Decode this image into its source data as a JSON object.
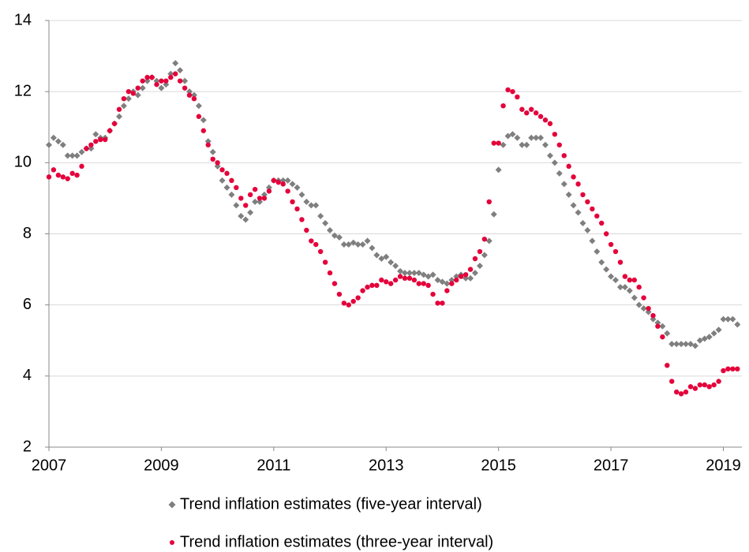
{
  "chart_data": {
    "type": "scatter",
    "x": [
      2007,
      2007.083,
      2007.167,
      2007.25,
      2007.333,
      2007.417,
      2007.5,
      2007.583,
      2007.667,
      2007.75,
      2007.833,
      2007.917,
      2008,
      2008.083,
      2008.167,
      2008.25,
      2008.333,
      2008.417,
      2008.5,
      2008.583,
      2008.667,
      2008.75,
      2008.833,
      2008.917,
      2009,
      2009.083,
      2009.167,
      2009.25,
      2009.333,
      2009.417,
      2009.5,
      2009.583,
      2009.667,
      2009.75,
      2009.833,
      2009.917,
      2010,
      2010.083,
      2010.167,
      2010.25,
      2010.333,
      2010.417,
      2010.5,
      2010.583,
      2010.667,
      2010.75,
      2010.833,
      2010.917,
      2011,
      2011.083,
      2011.167,
      2011.25,
      2011.333,
      2011.417,
      2011.5,
      2011.583,
      2011.667,
      2011.75,
      2011.833,
      2011.917,
      2012,
      2012.083,
      2012.167,
      2012.25,
      2012.333,
      2012.417,
      2012.5,
      2012.583,
      2012.667,
      2012.75,
      2012.833,
      2012.917,
      2013,
      2013.083,
      2013.167,
      2013.25,
      2013.333,
      2013.417,
      2013.5,
      2013.583,
      2013.667,
      2013.75,
      2013.833,
      2013.917,
      2014,
      2014.083,
      2014.167,
      2014.25,
      2014.333,
      2014.417,
      2014.5,
      2014.583,
      2014.667,
      2014.75,
      2014.833,
      2014.917,
      2015,
      2015.083,
      2015.167,
      2015.25,
      2015.333,
      2015.417,
      2015.5,
      2015.583,
      2015.667,
      2015.75,
      2015.833,
      2015.917,
      2016,
      2016.083,
      2016.167,
      2016.25,
      2016.333,
      2016.417,
      2016.5,
      2016.583,
      2016.667,
      2016.75,
      2016.833,
      2016.917,
      2017,
      2017.083,
      2017.167,
      2017.25,
      2017.333,
      2017.417,
      2017.5,
      2017.583,
      2017.667,
      2017.75,
      2017.833,
      2017.917,
      2018,
      2018.083,
      2018.167,
      2018.25,
      2018.333,
      2018.417,
      2018.5,
      2018.583,
      2018.667,
      2018.75,
      2018.833,
      2018.917,
      2019,
      2019.083,
      2019.167,
      2019.25
    ],
    "series": [
      {
        "name": "Trend inflation estimates (five-year interval)",
        "color": "#7f7f7f",
        "marker": "diamond",
        "values": [
          10.5,
          10.7,
          10.6,
          10.5,
          10.2,
          10.2,
          10.2,
          10.3,
          10.4,
          10.4,
          10.8,
          10.7,
          10.7,
          10.9,
          11.1,
          11.3,
          11.6,
          11.8,
          12.0,
          11.9,
          12.1,
          12.3,
          12.4,
          12.3,
          12.1,
          12.2,
          12.5,
          12.8,
          12.6,
          12.3,
          12.0,
          11.9,
          11.6,
          11.2,
          10.6,
          10.3,
          9.9,
          9.5,
          9.3,
          9.1,
          8.8,
          8.5,
          8.4,
          8.6,
          8.9,
          8.9,
          9.1,
          9.3,
          9.5,
          9.5,
          9.5,
          9.5,
          9.4,
          9.3,
          9.1,
          8.9,
          8.8,
          8.8,
          8.5,
          8.3,
          8.1,
          7.95,
          7.9,
          7.7,
          7.7,
          7.75,
          7.7,
          7.7,
          7.8,
          7.6,
          7.4,
          7.3,
          7.35,
          7.2,
          7.1,
          6.95,
          6.9,
          6.9,
          6.9,
          6.9,
          6.85,
          6.8,
          6.85,
          6.7,
          6.65,
          6.6,
          6.7,
          6.8,
          6.85,
          6.75,
          6.75,
          6.9,
          7.1,
          7.4,
          7.8,
          8.55,
          9.8,
          10.5,
          10.75,
          10.8,
          10.7,
          10.5,
          10.5,
          10.7,
          10.7,
          10.7,
          10.5,
          10.2,
          10.0,
          9.7,
          9.4,
          9.1,
          8.8,
          8.6,
          8.3,
          8.1,
          7.8,
          7.5,
          7.2,
          7.0,
          6.8,
          6.7,
          6.5,
          6.5,
          6.4,
          6.2,
          6.0,
          5.9,
          5.8,
          5.6,
          5.5,
          5.4,
          5.2,
          4.9,
          4.9,
          4.9,
          4.9,
          4.9,
          4.85,
          5.0,
          5.05,
          5.1,
          5.2,
          5.3,
          5.6,
          5.6,
          5.6,
          5.45
        ]
      },
      {
        "name": "Trend inflation estimates (three-year interval)",
        "color": "#e4003b",
        "marker": "circle",
        "values": [
          9.6,
          9.8,
          9.65,
          9.6,
          9.55,
          9.7,
          9.65,
          9.9,
          10.4,
          10.5,
          10.6,
          10.65,
          10.65,
          10.9,
          11.1,
          11.5,
          11.8,
          12.0,
          11.95,
          12.1,
          12.3,
          12.4,
          12.4,
          12.2,
          12.3,
          12.3,
          12.4,
          12.5,
          12.3,
          12.1,
          11.9,
          11.8,
          11.3,
          10.9,
          10.5,
          10.1,
          10.0,
          9.8,
          9.7,
          9.5,
          9.3,
          9.0,
          8.8,
          9.1,
          9.25,
          9.0,
          9.0,
          9.2,
          9.5,
          9.45,
          9.4,
          9.2,
          8.9,
          8.7,
          8.4,
          8.1,
          7.8,
          7.7,
          7.5,
          7.2,
          6.9,
          6.6,
          6.3,
          6.05,
          6.0,
          6.1,
          6.2,
          6.4,
          6.5,
          6.55,
          6.55,
          6.7,
          6.65,
          6.6,
          6.7,
          6.8,
          6.75,
          6.75,
          6.7,
          6.6,
          6.6,
          6.55,
          6.3,
          6.05,
          6.05,
          6.4,
          6.6,
          6.7,
          6.8,
          6.85,
          7.0,
          7.3,
          7.5,
          7.85,
          8.9,
          10.55,
          10.55,
          11.6,
          12.05,
          12.0,
          11.85,
          11.5,
          11.4,
          11.5,
          11.4,
          11.3,
          11.2,
          11.1,
          10.8,
          10.5,
          10.2,
          9.9,
          9.6,
          9.4,
          9.1,
          8.9,
          8.7,
          8.5,
          8.3,
          8.0,
          7.7,
          7.5,
          7.2,
          6.8,
          6.7,
          6.7,
          6.5,
          6.2,
          5.9,
          5.7,
          5.4,
          5.1,
          4.3,
          3.85,
          3.55,
          3.5,
          3.55,
          3.7,
          3.65,
          3.75,
          3.75,
          3.7,
          3.75,
          3.85,
          4.15,
          4.2,
          4.2,
          4.2
        ]
      }
    ],
    "xlim": [
      2007,
      2019.33
    ],
    "xticks": [
      2007,
      2009,
      2011,
      2013,
      2015,
      2017,
      2019
    ],
    "ylim": [
      2,
      14
    ],
    "yticks": [
      2,
      4,
      6,
      8,
      10,
      12,
      14
    ],
    "grid": true
  }
}
